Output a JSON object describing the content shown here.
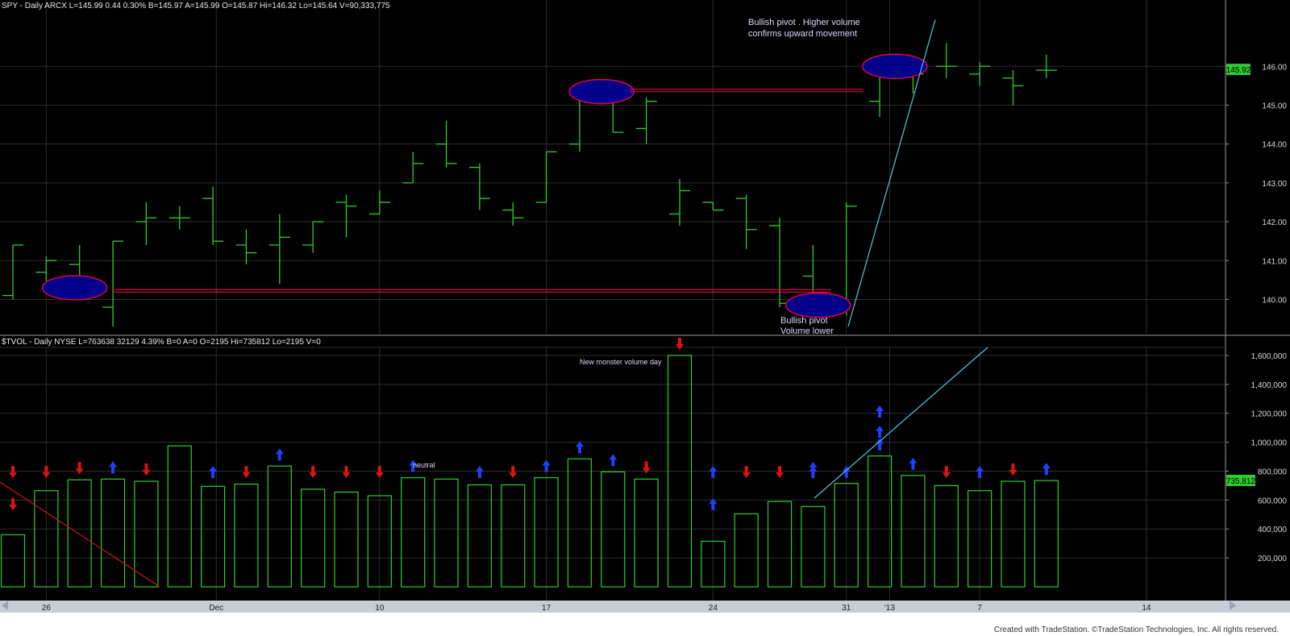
{
  "headers": {
    "price": "SPY - Daily  ARCX  L=145.99  0.44  0.30%  B=145.97  A=145.99  O=145.87  Hi=146.32  Lo=145.64  V=90,333,775",
    "volume": "$TVOL - Daily  NYSE  L=763638  32129  4.39%  B=0  A=0  O=2195  Hi=735812  Lo=2195  V=0"
  },
  "footer": "Created with TradeStation. ©TradeStation Technologies, Inc. All rights reserved.",
  "colors": {
    "background": "#000000",
    "bar": "#2ecc2e",
    "grid": "#2e2e2e",
    "axis_text": "#d8d8d8",
    "pivot_fill": "#00008b",
    "pivot_outline": "#e0004a",
    "trendline": "#4fc8dc",
    "up_arrow": "#1f3fff",
    "down_arrow": "#e01010",
    "last_price_tag": "#2ecc2e",
    "last_volume_tag": "#2ecc2e"
  },
  "chart_data": [
    {
      "type": "ohlc",
      "title": "SPY - Daily",
      "x_labels": [
        "26",
        "Dec",
        "10",
        "17",
        "24",
        "31",
        "'13",
        "7",
        "14"
      ],
      "ylim": [
        139.2,
        147.5
      ],
      "y_ticks": [
        "140.00",
        "141.00",
        "142.00",
        "143.00",
        "144.00",
        "145.00",
        "146.00"
      ],
      "last_value_tag": "145.92",
      "bars": [
        {
          "o": 140.1,
          "h": 141.4,
          "l": 140.0,
          "c": 141.4
        },
        {
          "o": 140.7,
          "h": 141.1,
          "l": 140.2,
          "c": 141.0
        },
        {
          "o": 140.9,
          "h": 141.4,
          "l": 140.3,
          "c": 140.3
        },
        {
          "o": 139.8,
          "h": 141.5,
          "l": 139.3,
          "c": 141.5
        },
        {
          "o": 142.0,
          "h": 142.5,
          "l": 141.4,
          "c": 142.1
        },
        {
          "o": 142.1,
          "h": 142.4,
          "l": 141.8,
          "c": 142.1
        },
        {
          "o": 142.6,
          "h": 142.9,
          "l": 141.4,
          "c": 141.5
        },
        {
          "o": 141.4,
          "h": 141.8,
          "l": 140.9,
          "c": 141.2
        },
        {
          "o": 141.4,
          "h": 142.2,
          "l": 140.4,
          "c": 141.6
        },
        {
          "o": 141.4,
          "h": 142.0,
          "l": 141.2,
          "c": 142.0
        },
        {
          "o": 142.5,
          "h": 142.7,
          "l": 141.6,
          "c": 142.4
        },
        {
          "o": 142.2,
          "h": 142.8,
          "l": 142.2,
          "c": 142.5
        },
        {
          "o": 143.0,
          "h": 143.8,
          "l": 143.0,
          "c": 143.5
        },
        {
          "o": 144.0,
          "h": 144.6,
          "l": 143.4,
          "c": 143.5
        },
        {
          "o": 143.4,
          "h": 143.5,
          "l": 142.3,
          "c": 142.6
        },
        {
          "o": 142.3,
          "h": 142.5,
          "l": 141.9,
          "c": 142.1
        },
        {
          "o": 142.5,
          "h": 143.8,
          "l": 142.5,
          "c": 143.8
        },
        {
          "o": 144.0,
          "h": 145.4,
          "l": 143.8,
          "c": 145.4
        },
        {
          "o": 145.4,
          "h": 145.6,
          "l": 144.3,
          "c": 144.3
        },
        {
          "o": 144.4,
          "h": 145.2,
          "l": 144.0,
          "c": 145.1
        },
        {
          "o": 142.2,
          "h": 143.1,
          "l": 141.9,
          "c": 142.8
        },
        {
          "o": 142.5,
          "h": 142.5,
          "l": 142.3,
          "c": 142.3
        },
        {
          "o": 142.6,
          "h": 142.7,
          "l": 141.3,
          "c": 141.8
        },
        {
          "o": 141.9,
          "h": 142.1,
          "l": 139.8,
          "c": 139.9
        },
        {
          "o": 140.6,
          "h": 141.4,
          "l": 139.8,
          "c": 140.0
        },
        {
          "o": 139.7,
          "h": 142.5,
          "l": 139.6,
          "c": 142.4
        },
        {
          "o": 145.1,
          "h": 146.1,
          "l": 144.7,
          "c": 146.0
        },
        {
          "o": 146.0,
          "h": 146.2,
          "l": 145.3,
          "c": 145.8
        },
        {
          "o": 146.0,
          "h": 146.6,
          "l": 145.7,
          "c": 146.0
        },
        {
          "o": 145.8,
          "h": 146.1,
          "l": 145.5,
          "c": 146.0
        },
        {
          "o": 145.7,
          "h": 145.9,
          "l": 145.0,
          "c": 145.5
        },
        {
          "o": 145.9,
          "h": 146.3,
          "l": 145.7,
          "c": 145.9
        }
      ]
    },
    {
      "type": "bar",
      "title": "$TVOL - Daily",
      "ylim": [
        0,
        1650000
      ],
      "y_ticks": [
        "200,000",
        "400,000",
        "600,000",
        "800,000",
        "1,000,000",
        "1,200,000",
        "1,400,000",
        "1,600,000"
      ],
      "last_value_tag": "735,812",
      "values": [
        360000,
        665000,
        740000,
        745000,
        730000,
        975000,
        695000,
        710000,
        835000,
        675000,
        655000,
        630000,
        755000,
        745000,
        705000,
        705000,
        755000,
        885000,
        795000,
        745000,
        1600000,
        315000,
        505000,
        590000,
        555000,
        715000,
        905000,
        770000,
        700000,
        665000,
        730000,
        735000
      ],
      "markers": [
        "down",
        "down",
        "down",
        "up",
        "down",
        "",
        "up",
        "down",
        "up",
        "down",
        "down",
        "down",
        "up",
        "",
        "up",
        "down",
        "up",
        "up",
        "up",
        "down",
        "down",
        "up",
        "down",
        "down",
        "up",
        "up",
        "up",
        "up",
        "down",
        "up",
        "down",
        "up"
      ]
    }
  ],
  "annotations": {
    "pivot_top": [
      "Bullish pivot . Higher volume",
      "confirms upward movement"
    ],
    "pivot_bottom": [
      "Bullish pivot",
      "Volume lower"
    ],
    "monster": "New monster volume day",
    "neutral": "neutral"
  }
}
